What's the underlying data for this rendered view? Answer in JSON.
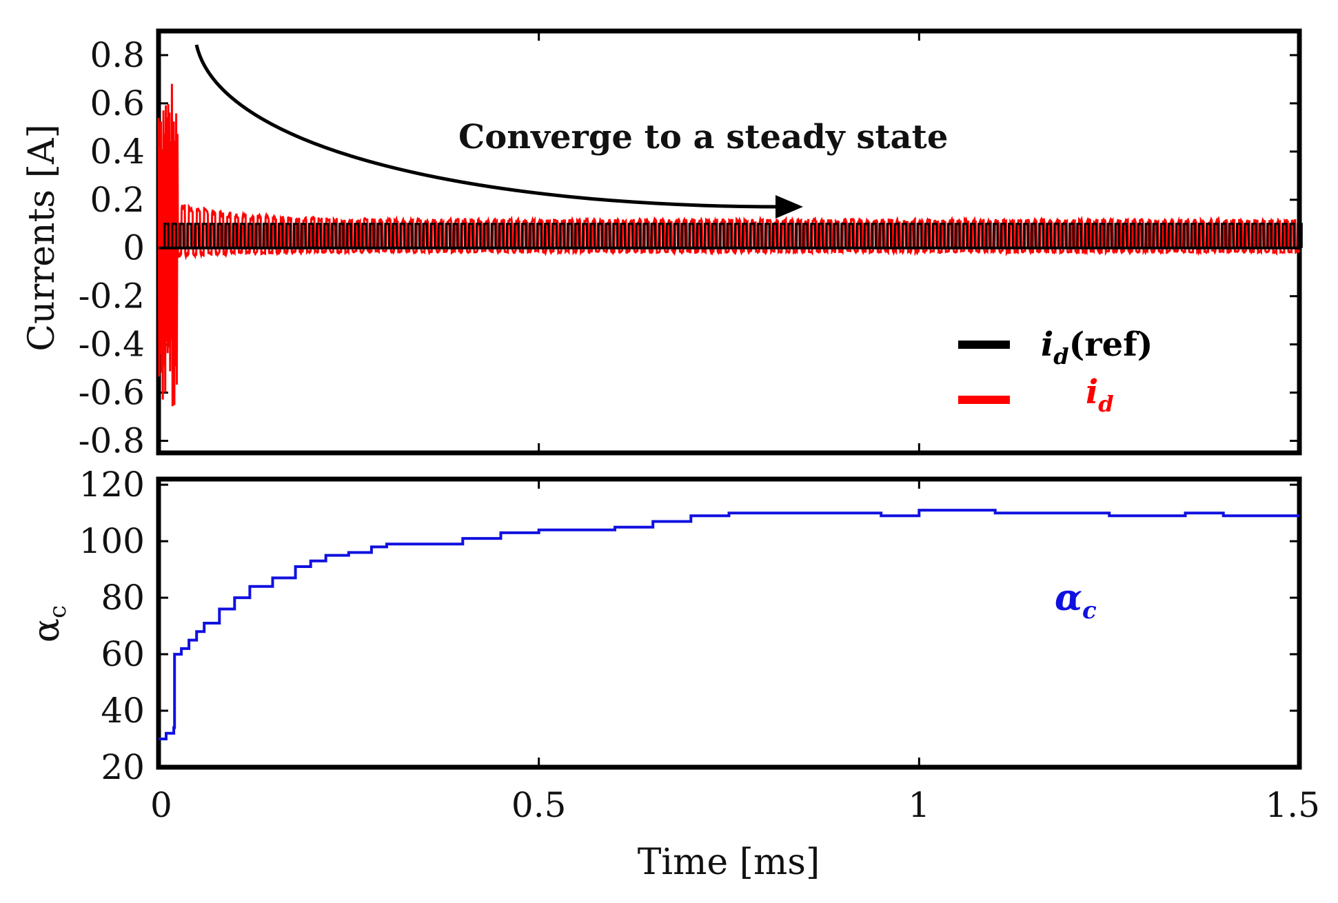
{
  "colors": {
    "reference": "#000000",
    "measured": "#ff0000",
    "alpha": "#1010e0",
    "frame": "#000000",
    "background": "#ffffff"
  },
  "chart_data": [
    {
      "type": "line",
      "title": "",
      "annotation": "Converge to a steady state",
      "xlabel": "",
      "ylabel": "Currents [A]",
      "xlim": [
        0,
        1.5
      ],
      "ylim": [
        -0.85,
        0.9
      ],
      "yticks": [
        0.8,
        0.6,
        0.4,
        0.2,
        0,
        -0.2,
        -0.4,
        -0.6,
        -0.8
      ],
      "ytick_labels": [
        "0.8",
        "0.6",
        "0.4",
        "0.2",
        "0",
        "-0.2",
        "-0.4",
        "-0.6",
        "-0.8"
      ],
      "xticks": [
        0,
        0.5,
        1,
        1.5
      ],
      "legend": {
        "placement": "right",
        "entries": [
          {
            "label_main": "i",
            "label_sub": "d",
            "label_suffix": "(ref)",
            "series": "id_ref"
          },
          {
            "label_main": "i",
            "label_sub": "d",
            "label_suffix": "",
            "series": "id"
          }
        ]
      },
      "series": [
        {
          "name": "id_ref",
          "color": "#000000",
          "description": "square pulse train between 0 and 0.1 A",
          "period_ms": 0.01,
          "low": 0.0,
          "high": 0.1
        },
        {
          "name": "id",
          "color": "#ff0000",
          "description": "measured current, large initial oscillation then tracks reference",
          "initial_amplitude": 0.7,
          "initial_duration_ms": 0.025,
          "steady_peak": 0.12,
          "steady_trough": -0.02
        }
      ]
    },
    {
      "type": "line",
      "title": "",
      "annotation_main": "α",
      "annotation_sub": "c",
      "xlabel": "Time [ms]",
      "ylabel_main": "α",
      "ylabel_sub": "c",
      "xlim": [
        0,
        1.5
      ],
      "ylim": [
        20,
        122
      ],
      "yticks": [
        120,
        100,
        80,
        60,
        40,
        20
      ],
      "ytick_labels": [
        "120",
        "100",
        "80",
        "60",
        "40",
        "20"
      ],
      "xticks": [
        0,
        0.5,
        1,
        1.5
      ],
      "xtick_labels": [
        "0",
        "0.5",
        "1",
        "1.5"
      ],
      "series": [
        {
          "name": "alpha_c",
          "color": "#1010e0",
          "x": [
            0,
            0.01,
            0.02,
            0.021,
            0.03,
            0.04,
            0.05,
            0.06,
            0.08,
            0.1,
            0.12,
            0.15,
            0.18,
            0.2,
            0.22,
            0.25,
            0.28,
            0.3,
            0.33,
            0.36,
            0.4,
            0.45,
            0.5,
            0.55,
            0.6,
            0.65,
            0.7,
            0.75,
            0.8,
            0.85,
            0.9,
            0.95,
            1.0,
            1.05,
            1.1,
            1.15,
            1.2,
            1.25,
            1.3,
            1.35,
            1.4,
            1.45,
            1.5
          ],
          "y": [
            30,
            32,
            34,
            60,
            62,
            65,
            68,
            71,
            76,
            80,
            84,
            87,
            91,
            93,
            95,
            96,
            98,
            99,
            99,
            99,
            101,
            103,
            104,
            104,
            105,
            107,
            109,
            110,
            110,
            110,
            110,
            109,
            111,
            111,
            110,
            110,
            110,
            109,
            109,
            110,
            109,
            109,
            109
          ]
        }
      ]
    }
  ]
}
